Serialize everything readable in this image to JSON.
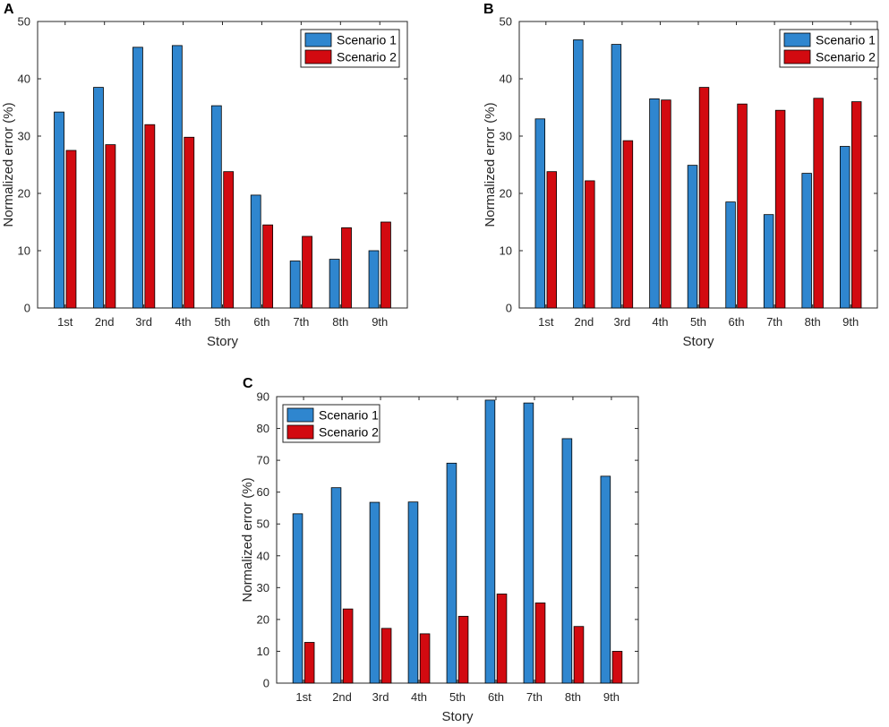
{
  "chart_data": [
    {
      "panel": "A",
      "type": "bar",
      "categories": [
        "1st",
        "2nd",
        "3rd",
        "4th",
        "5th",
        "6th",
        "7th",
        "8th",
        "9th"
      ],
      "series": [
        {
          "name": "Scenario 1",
          "color": "#2f86cf",
          "values": [
            34.2,
            38.5,
            45.5,
            45.8,
            35.3,
            19.7,
            8.2,
            8.5,
            10.0
          ]
        },
        {
          "name": "Scenario 2",
          "color": "#d20a10",
          "values": [
            27.5,
            28.5,
            32.0,
            29.8,
            23.8,
            14.5,
            12.5,
            14.0,
            15.0
          ]
        }
      ],
      "xlabel": "Story",
      "ylabel": "Normalized error (%)",
      "ylim": [
        0,
        50
      ],
      "yticks": [
        0,
        10,
        20,
        30,
        40,
        50
      ],
      "legend": "top-right",
      "grid": false
    },
    {
      "panel": "B",
      "type": "bar",
      "categories": [
        "1st",
        "2nd",
        "3rd",
        "4th",
        "5th",
        "6th",
        "7th",
        "8th",
        "9th"
      ],
      "series": [
        {
          "name": "Scenario 1",
          "color": "#2f86cf",
          "values": [
            33.0,
            46.8,
            46.0,
            36.5,
            24.9,
            18.5,
            16.3,
            23.5,
            28.2
          ]
        },
        {
          "name": "Scenario 2",
          "color": "#d20a10",
          "values": [
            23.8,
            22.2,
            29.2,
            36.3,
            38.5,
            35.6,
            34.5,
            36.6,
            36.0
          ]
        }
      ],
      "xlabel": "Story",
      "ylabel": "Normalized error (%)",
      "ylim": [
        0,
        50
      ],
      "yticks": [
        0,
        10,
        20,
        30,
        40,
        50
      ],
      "legend": "top-right",
      "grid": false
    },
    {
      "panel": "C",
      "type": "bar",
      "categories": [
        "1st",
        "2nd",
        "3rd",
        "4th",
        "5th",
        "6th",
        "7th",
        "8th",
        "9th"
      ],
      "series": [
        {
          "name": "Scenario 1",
          "color": "#2f86cf",
          "values": [
            53.2,
            61.4,
            56.8,
            56.9,
            69.1,
            88.9,
            88.0,
            76.8,
            65.0
          ]
        },
        {
          "name": "Scenario 2",
          "color": "#d20a10",
          "values": [
            12.8,
            23.3,
            17.2,
            15.5,
            21.0,
            28.0,
            25.2,
            17.8,
            10.0
          ]
        }
      ],
      "xlabel": "Story",
      "ylabel": "Normalized error (%)",
      "ylim": [
        0,
        90
      ],
      "yticks": [
        0,
        10,
        20,
        30,
        40,
        50,
        60,
        70,
        80,
        90
      ],
      "legend": "top-left",
      "grid": false
    }
  ]
}
